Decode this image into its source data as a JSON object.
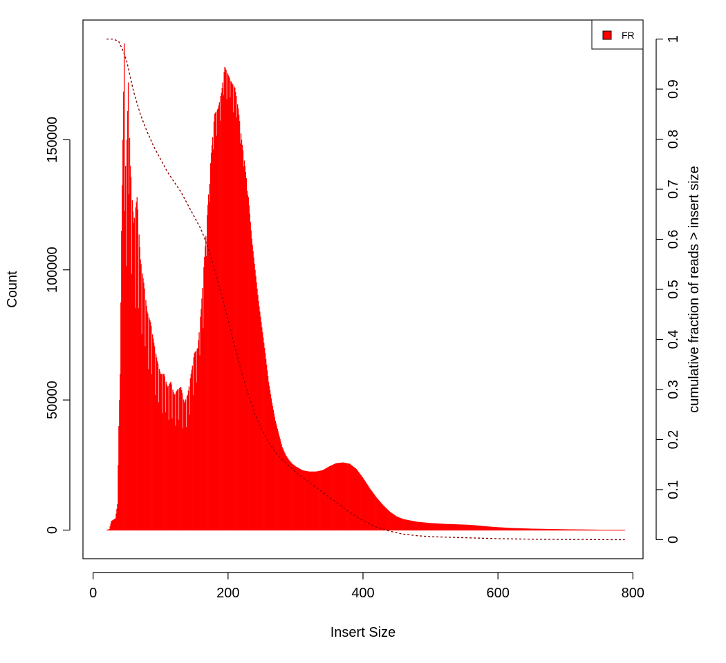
{
  "chart_data": {
    "type": "histogram",
    "xlabel": "Insert Size",
    "ylabel": "Count",
    "y2label": "cumulative fraction of reads > insert size",
    "xlim": [
      -15,
      815
    ],
    "ylim": [
      -11000,
      196000
    ],
    "y2lim": [
      -0.038,
      1.038
    ],
    "xticks": [
      0,
      200,
      400,
      600,
      800
    ],
    "yticks": [
      0,
      50000,
      100000,
      150000
    ],
    "y2ticks": [
      0,
      0.1,
      0.2,
      0.3,
      0.4,
      0.5,
      0.6,
      0.7,
      0.8,
      0.9,
      1
    ],
    "legend": {
      "position": "top-right",
      "entries": [
        {
          "label": "FR",
          "color": "#ff0000"
        }
      ]
    },
    "colors": {
      "bars": "#ff0000",
      "cumulative_line": "#8b0000"
    },
    "histogram_profile": [
      [
        20,
        0
      ],
      [
        24,
        400
      ],
      [
        27,
        3500
      ],
      [
        33,
        4500
      ],
      [
        36,
        10000
      ],
      [
        38,
        40000
      ],
      [
        40,
        60000
      ],
      [
        42,
        115000
      ],
      [
        44,
        150000
      ],
      [
        46,
        187000
      ],
      [
        48,
        140000
      ],
      [
        50,
        150000
      ],
      [
        52,
        172000
      ],
      [
        55,
        140000
      ],
      [
        60,
        118000
      ],
      [
        65,
        128000
      ],
      [
        70,
        104000
      ],
      [
        75,
        95000
      ],
      [
        80,
        84000
      ],
      [
        85,
        80000
      ],
      [
        90,
        72000
      ],
      [
        95,
        65000
      ],
      [
        100,
        60000
      ],
      [
        105,
        60000
      ],
      [
        110,
        55000
      ],
      [
        115,
        57000
      ],
      [
        120,
        52000
      ],
      [
        125,
        54000
      ],
      [
        130,
        55000
      ],
      [
        135,
        49000
      ],
      [
        140,
        52000
      ],
      [
        145,
        60000
      ],
      [
        150,
        68000
      ],
      [
        155,
        70000
      ],
      [
        160,
        85000
      ],
      [
        165,
        105000
      ],
      [
        170,
        125000
      ],
      [
        175,
        145000
      ],
      [
        180,
        160000
      ],
      [
        185,
        162000
      ],
      [
        190,
        168000
      ],
      [
        195,
        178000
      ],
      [
        200,
        175000
      ],
      [
        205,
        172000
      ],
      [
        210,
        170000
      ],
      [
        215,
        162000
      ],
      [
        220,
        150000
      ],
      [
        225,
        140000
      ],
      [
        230,
        128000
      ],
      [
        235,
        112000
      ],
      [
        240,
        100000
      ],
      [
        245,
        88000
      ],
      [
        250,
        78000
      ],
      [
        255,
        68000
      ],
      [
        260,
        57000
      ],
      [
        265,
        49000
      ],
      [
        270,
        42000
      ],
      [
        275,
        37000
      ],
      [
        280,
        32000
      ],
      [
        285,
        29000
      ],
      [
        290,
        27000
      ],
      [
        295,
        25500
      ],
      [
        300,
        24500
      ],
      [
        310,
        23000
      ],
      [
        320,
        22500
      ],
      [
        330,
        22500
      ],
      [
        340,
        23000
      ],
      [
        350,
        24500
      ],
      [
        360,
        25700
      ],
      [
        370,
        26000
      ],
      [
        380,
        25500
      ],
      [
        390,
        23500
      ],
      [
        400,
        20000
      ],
      [
        410,
        16000
      ],
      [
        420,
        12500
      ],
      [
        430,
        9500
      ],
      [
        440,
        7000
      ],
      [
        450,
        5200
      ],
      [
        460,
        4200
      ],
      [
        480,
        3200
      ],
      [
        500,
        2700
      ],
      [
        520,
        2400
      ],
      [
        540,
        2200
      ],
      [
        560,
        2000
      ],
      [
        580,
        1500
      ],
      [
        600,
        1100
      ],
      [
        620,
        800
      ],
      [
        650,
        550
      ],
      [
        700,
        300
      ],
      [
        750,
        150
      ],
      [
        788,
        50
      ]
    ],
    "comb_dips": [
      [
        47,
        0.25
      ],
      [
        49,
        0.3
      ],
      [
        53,
        0.2
      ],
      [
        57,
        0.25
      ],
      [
        62,
        0.3
      ],
      [
        67,
        0.28
      ],
      [
        72,
        0.25
      ],
      [
        77,
        0.22
      ],
      [
        82,
        0.25
      ],
      [
        87,
        0.22
      ],
      [
        92,
        0.25
      ],
      [
        97,
        0.22
      ],
      [
        102,
        0.25
      ],
      [
        107,
        0.22
      ],
      [
        112,
        0.24
      ],
      [
        117,
        0.22
      ],
      [
        122,
        0.24
      ],
      [
        127,
        0.22
      ],
      [
        133,
        0.24
      ],
      [
        138,
        0.22
      ],
      [
        143,
        0.22
      ],
      [
        148,
        0.2
      ],
      [
        153,
        0.18
      ],
      [
        158,
        0.15
      ],
      [
        163,
        0.2
      ],
      [
        168,
        0.1
      ],
      [
        173,
        0.08
      ],
      [
        178,
        0.05
      ],
      [
        183,
        0.06
      ],
      [
        188,
        0.05
      ],
      [
        193,
        0.04
      ],
      [
        198,
        0.06
      ],
      [
        203,
        0.04
      ],
      [
        208,
        0.06
      ],
      [
        213,
        0.04
      ],
      [
        218,
        0.04
      ],
      [
        223,
        0.03
      ],
      [
        228,
        0.03
      ]
    ],
    "cumulative_fraction": [
      [
        20,
        1.0
      ],
      [
        30,
        1.0
      ],
      [
        38,
        0.995
      ],
      [
        45,
        0.975
      ],
      [
        50,
        0.955
      ],
      [
        55,
        0.925
      ],
      [
        60,
        0.895
      ],
      [
        70,
        0.85
      ],
      [
        80,
        0.815
      ],
      [
        90,
        0.785
      ],
      [
        100,
        0.76
      ],
      [
        110,
        0.735
      ],
      [
        120,
        0.715
      ],
      [
        130,
        0.695
      ],
      [
        140,
        0.67
      ],
      [
        150,
        0.645
      ],
      [
        160,
        0.62
      ],
      [
        170,
        0.585
      ],
      [
        180,
        0.54
      ],
      [
        190,
        0.49
      ],
      [
        200,
        0.44
      ],
      [
        210,
        0.385
      ],
      [
        220,
        0.335
      ],
      [
        230,
        0.29
      ],
      [
        240,
        0.25
      ],
      [
        250,
        0.22
      ],
      [
        260,
        0.195
      ],
      [
        270,
        0.175
      ],
      [
        280,
        0.16
      ],
      [
        290,
        0.148
      ],
      [
        300,
        0.135
      ],
      [
        320,
        0.115
      ],
      [
        340,
        0.095
      ],
      [
        360,
        0.075
      ],
      [
        380,
        0.055
      ],
      [
        400,
        0.038
      ],
      [
        420,
        0.025
      ],
      [
        440,
        0.017
      ],
      [
        460,
        0.011
      ],
      [
        480,
        0.008
      ],
      [
        500,
        0.006
      ],
      [
        550,
        0.004
      ],
      [
        600,
        0.002
      ],
      [
        650,
        0.001
      ],
      [
        700,
        0.0005
      ],
      [
        788,
        0.0
      ]
    ]
  }
}
